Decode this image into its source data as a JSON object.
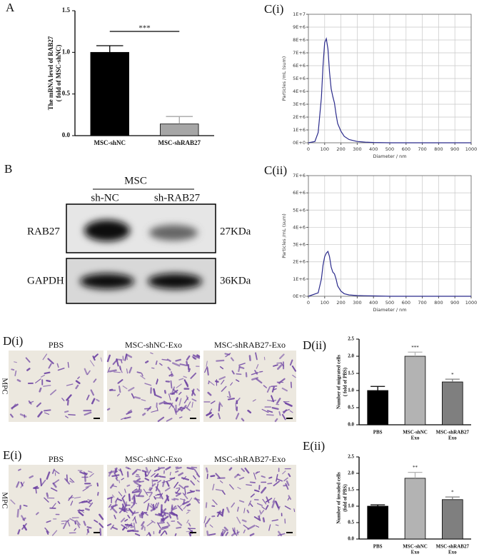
{
  "chart_data": [
    {
      "type": "bar",
      "panel": "A",
      "y_label": [
        "The mRNA level of RAB27",
        "( fold of MSC-shNC)"
      ],
      "categories": [
        [
          "MSC-shNC"
        ],
        [
          "MSC-shRAB27"
        ]
      ],
      "values": [
        1.0,
        0.14
      ],
      "errors": [
        0.08,
        0.09
      ],
      "colors": [
        "#000000",
        "#a6a6a6"
      ],
      "annotation": "***",
      "ylim": [
        0,
        1.5
      ],
      "yticks": [
        {
          "value": 0,
          "label": "0.0"
        },
        {
          "value": 0.5,
          "label": "0.5"
        },
        {
          "value": 1,
          "label": "1.0"
        },
        {
          "value": 1.5,
          "label": "1.5"
        }
      ]
    },
    {
      "type": "line",
      "panel": "C(i)",
      "y_label": "Particles /mL (sum)",
      "x_label": "Diameter / nm",
      "color": "#2b2b8c",
      "grid": true,
      "x": [
        0,
        40,
        60,
        80,
        90,
        100,
        110,
        120,
        130,
        140,
        150,
        160,
        170,
        180,
        190,
        200,
        220,
        250,
        300,
        350,
        400,
        500,
        600,
        1000
      ],
      "values": [
        0,
        100000,
        800000,
        3500000,
        6000000,
        7800000,
        8100000,
        7300000,
        5500000,
        4200000,
        3600000,
        3100000,
        2200000,
        1500000,
        1200000,
        900000,
        500000,
        250000,
        100000,
        50000,
        20000,
        0,
        0,
        0
      ],
      "xlim": [
        0,
        1000
      ],
      "xticks": [
        0,
        100,
        200,
        300,
        400,
        500,
        600,
        700,
        800,
        900,
        1000
      ],
      "ylim": [
        0,
        10000000
      ],
      "yticks": [
        {
          "value": 0,
          "label": "0E+0"
        },
        {
          "value": 1000000,
          "label": "1E+6"
        },
        {
          "value": 2000000,
          "label": "2E+6"
        },
        {
          "value": 3000000,
          "label": "3E+6"
        },
        {
          "value": 4000000,
          "label": "4E+6"
        },
        {
          "value": 5000000,
          "label": "5E+6"
        },
        {
          "value": 6000000,
          "label": "6E+6"
        },
        {
          "value": 7000000,
          "label": "7E+6"
        },
        {
          "value": 8000000,
          "label": "8E+6"
        },
        {
          "value": 9000000,
          "label": "9E+6"
        },
        {
          "value": 10000000,
          "label": "1E+7"
        }
      ]
    },
    {
      "type": "line",
      "panel": "C(ii)",
      "y_label": "Particles /mL (sum)",
      "x_label": "Diameter / nm",
      "color": "#2b2b8c",
      "grid": true,
      "x": [
        0,
        60,
        80,
        90,
        100,
        110,
        120,
        130,
        140,
        150,
        160,
        170,
        180,
        200,
        220,
        250,
        300,
        400,
        500,
        1000
      ],
      "values": [
        0,
        200000,
        1000000,
        1800000,
        2300000,
        2500000,
        2600000,
        2300000,
        1700000,
        1400000,
        1300000,
        1000000,
        600000,
        300000,
        150000,
        80000,
        40000,
        20000,
        0,
        0
      ],
      "xlim": [
        0,
        1000
      ],
      "xticks": [
        0,
        100,
        200,
        300,
        400,
        500,
        600,
        700,
        800,
        900,
        1000
      ],
      "ylim": [
        0,
        7000000
      ],
      "yticks": [
        {
          "value": 0,
          "label": "0E+0"
        },
        {
          "value": 1000000,
          "label": "1E+6"
        },
        {
          "value": 2000000,
          "label": "2E+6"
        },
        {
          "value": 3000000,
          "label": "3E+6"
        },
        {
          "value": 4000000,
          "label": "4E+6"
        },
        {
          "value": 5000000,
          "label": "5E+6"
        },
        {
          "value": 6000000,
          "label": "6E+6"
        },
        {
          "value": 7000000,
          "label": "7E+6"
        }
      ]
    },
    {
      "type": "bar",
      "panel": "D(ii)",
      "y_label": [
        "Number of migrated cells",
        "( fold of PBS)"
      ],
      "categories": [
        [
          "PBS"
        ],
        [
          "MSC-shNC",
          "Exo"
        ],
        [
          "MSC-shRAB27",
          "Exo"
        ]
      ],
      "values": [
        1.0,
        2.0,
        1.25
      ],
      "errors": [
        0.12,
        0.12,
        0.08
      ],
      "colors": [
        "#000000",
        "#b3b3b3",
        "#7f7f7f"
      ],
      "annotations": [
        null,
        "***",
        "*"
      ],
      "ylim": [
        0,
        2.5
      ],
      "yticks": [
        {
          "value": 0,
          "label": "0.0"
        },
        {
          "value": 0.5,
          "label": "0.5"
        },
        {
          "value": 1,
          "label": "1.0"
        },
        {
          "value": 1.5,
          "label": "1.5"
        },
        {
          "value": 2,
          "label": "2.0"
        },
        {
          "value": 2.5,
          "label": "2.5"
        }
      ]
    },
    {
      "type": "bar",
      "panel": "E(ii)",
      "y_label": [
        "Number of invaded cells",
        "(fold of PBS)"
      ],
      "categories": [
        [
          "PBS"
        ],
        [
          "MSC-shNC",
          "Exo"
        ],
        [
          "MSC-shRAB27",
          "Exo"
        ]
      ],
      "values": [
        1.0,
        1.85,
        1.2
      ],
      "errors": [
        0.04,
        0.18,
        0.08
      ],
      "colors": [
        "#000000",
        "#b3b3b3",
        "#7f7f7f"
      ],
      "annotations": [
        null,
        "**",
        "*"
      ],
      "ylim": [
        0,
        2.5
      ],
      "yticks": [
        {
          "value": 0,
          "label": "0.0"
        },
        {
          "value": 0.5,
          "label": "0.5"
        },
        {
          "value": 1,
          "label": "1.0"
        },
        {
          "value": 1.5,
          "label": "1.5"
        },
        {
          "value": 2,
          "label": "2.0"
        },
        {
          "value": 2.5,
          "label": "2.5"
        }
      ]
    }
  ],
  "blot": {
    "label": "B",
    "group": "MSC",
    "lanes": [
      "sh-NC",
      "sh-RAB27"
    ],
    "proteins": [
      {
        "name": "RAB27",
        "size": "27KDa"
      },
      {
        "name": "GAPDH",
        "size": "36KDa"
      }
    ]
  },
  "transwell": [
    {
      "label": "D(i)",
      "row": "MPC",
      "columns": [
        "PBS",
        "MSC-shNC-Exo",
        "MSC-shRAB27-Exo"
      ]
    },
    {
      "label": "E(i)",
      "row": "MPC",
      "columns": [
        "PBS",
        "MSC-shNC-Exo",
        "MSC-shRAB27-Exo"
      ]
    }
  ]
}
